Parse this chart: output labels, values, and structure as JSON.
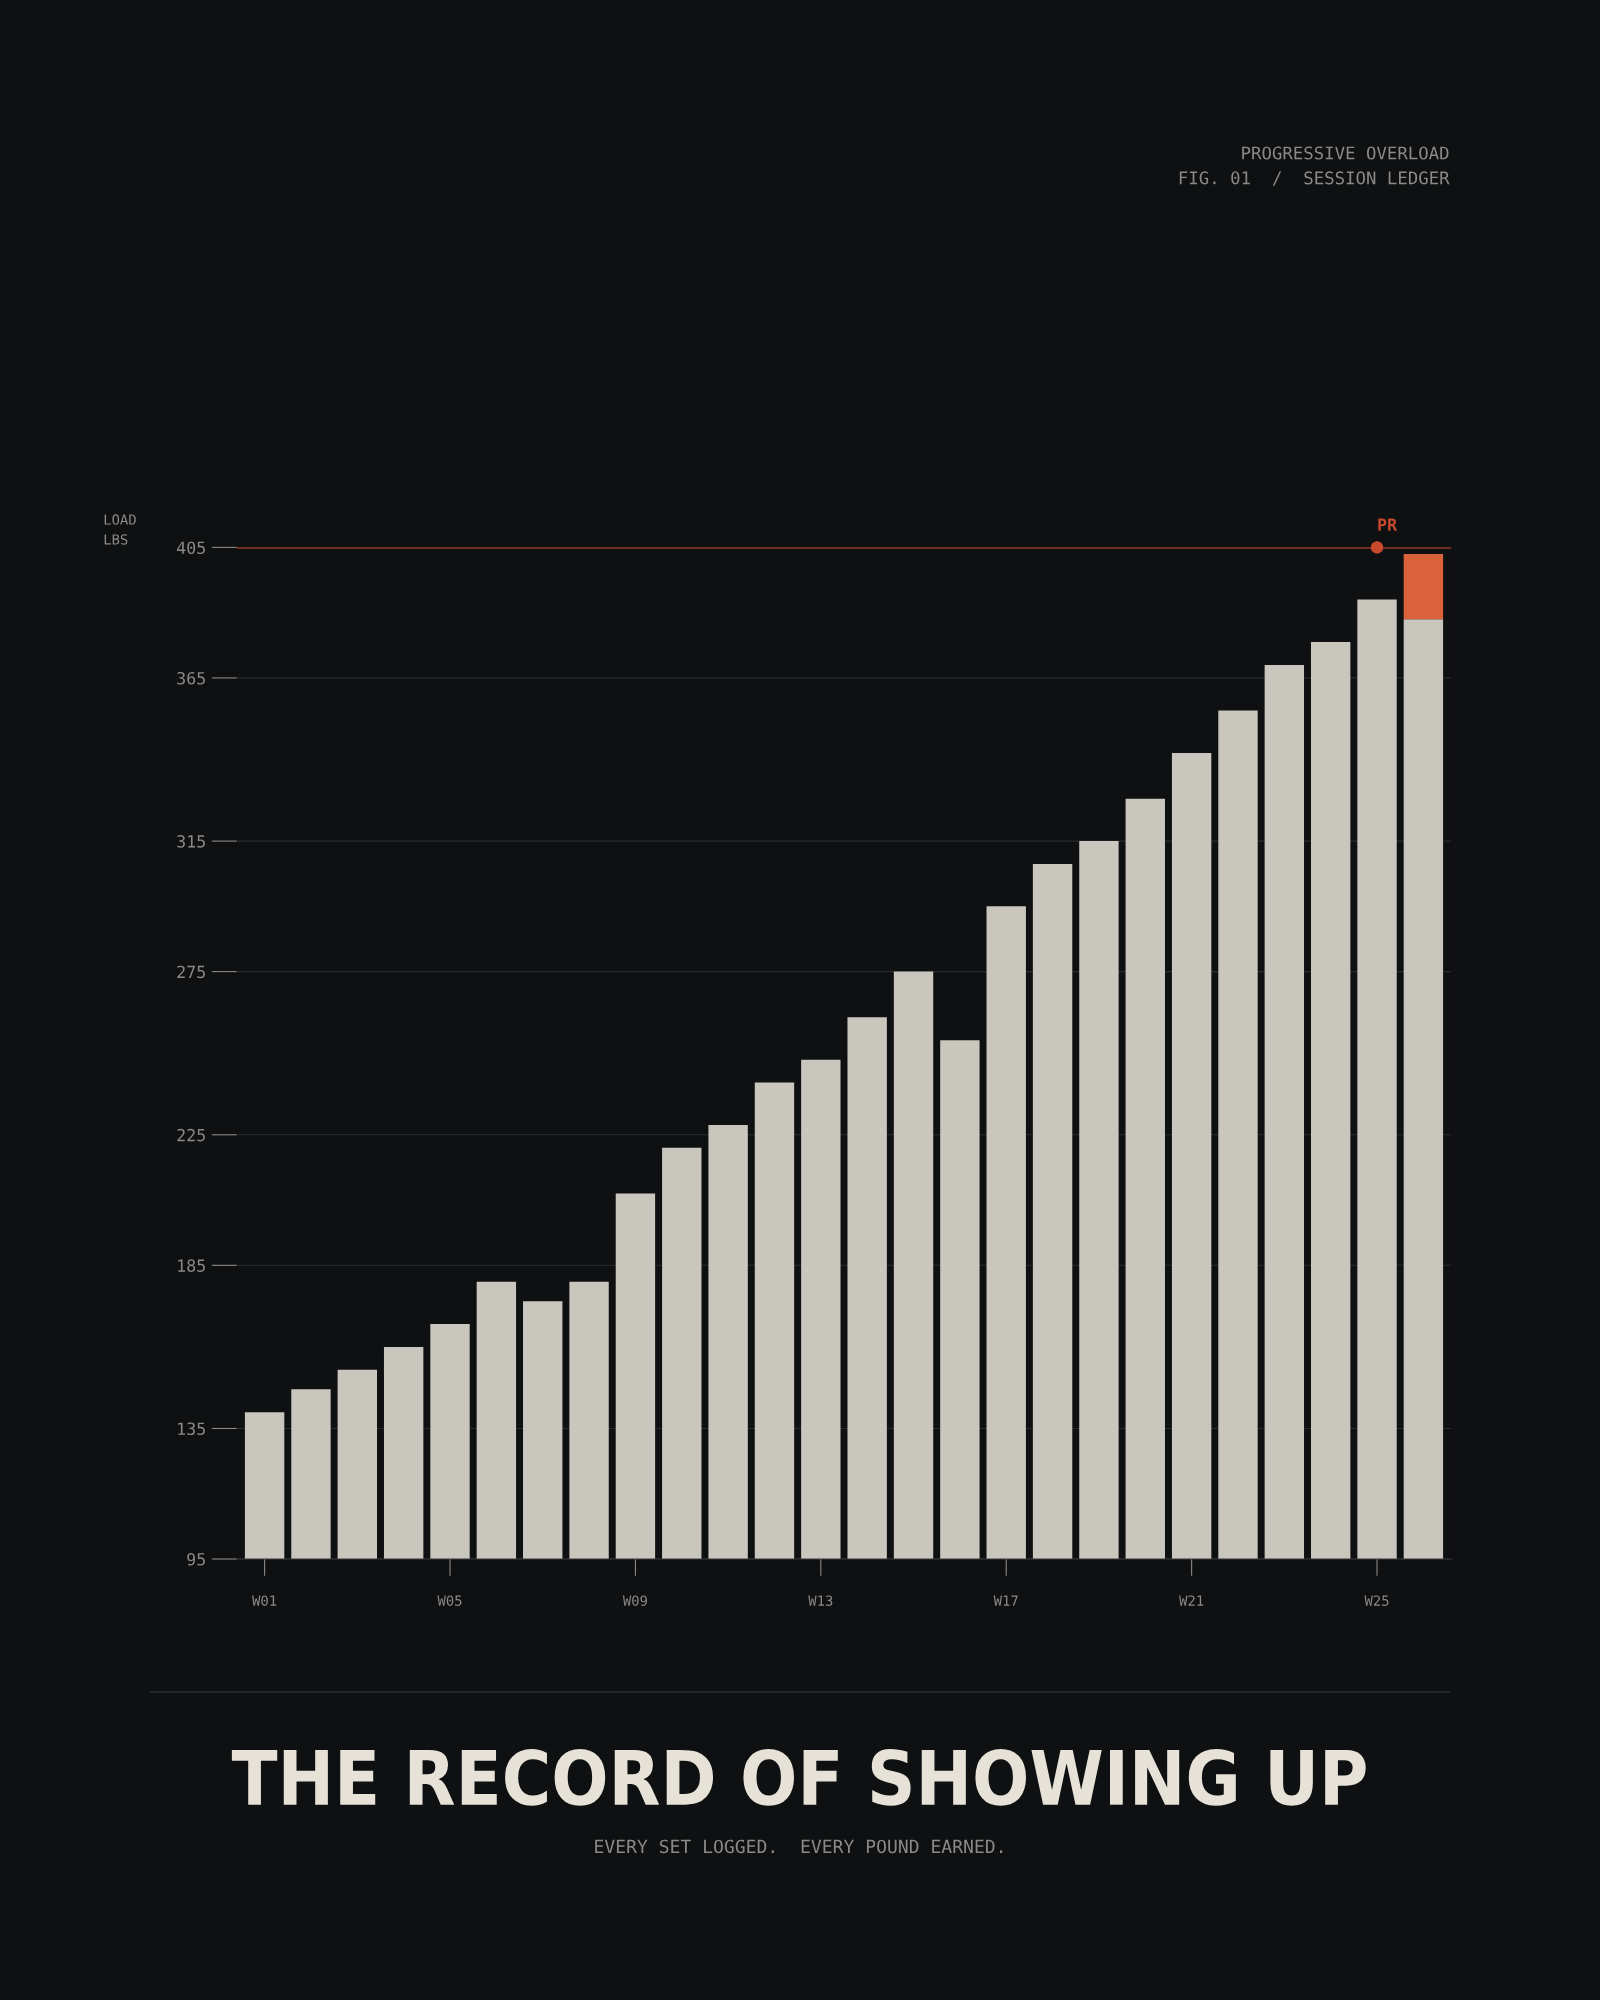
{
  "chart_data": {
    "type": "bar",
    "title": "THE RECORD OF SHOWING UP",
    "subtitle": "EVERY SET LOGGED.  EVERY POUND EARNED.",
    "ylabel": "LOAD\nLBS",
    "annotations": [
      "PROGRESSIVE OVERLOAD\nFIG. 01  /  SESSION LEDGER"
    ],
    "categories": [
      "W01",
      null,
      null,
      null,
      "W05",
      null,
      null,
      null,
      "W09",
      null,
      null,
      null,
      "W13",
      null,
      null,
      null,
      "W17",
      null,
      null,
      null,
      "W21",
      null,
      null,
      null,
      "W25",
      null
    ],
    "series": [
      {
        "color": "#c9c6be",
        "values": [
          140,
          147,
          153,
          160,
          167,
          180,
          174,
          180,
          207,
          221,
          228,
          241,
          248,
          261,
          275,
          254,
          295,
          308,
          315,
          328,
          342,
          355,
          369,
          376,
          389,
          383
        ]
      },
      {
        "color": "#d9623a",
        "base": [
          null,
          null,
          null,
          null,
          null,
          null,
          null,
          null,
          null,
          null,
          null,
          null,
          null,
          null,
          null,
          null,
          null,
          null,
          null,
          null,
          null,
          null,
          null,
          null,
          null,
          383
        ],
        "values": [
          null,
          null,
          null,
          null,
          null,
          null,
          null,
          null,
          null,
          null,
          null,
          null,
          null,
          null,
          null,
          null,
          null,
          null,
          null,
          null,
          null,
          null,
          null,
          null,
          null,
          20
        ]
      }
    ],
    "ylim": [
      95,
      405
    ],
    "yticks": [
      95,
      135,
      185,
      225,
      275,
      315,
      365,
      405
    ],
    "grid": "y",
    "ref_lines": [
      {
        "axis": "y",
        "value": 405,
        "label": "PR",
        "color": "#c8492c"
      }
    ]
  }
}
